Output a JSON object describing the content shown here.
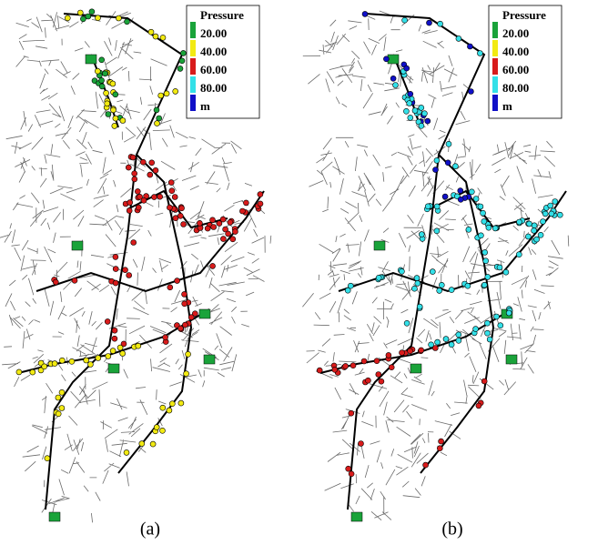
{
  "panels": [
    {
      "legend": {
        "title": "Pressure",
        "labels": [
          "20.00",
          "40.00",
          "60.00",
          "80.00"
        ],
        "unit": "m",
        "colors": [
          "#1aa33a",
          "#f2ea12",
          "#d81b1b",
          "#33e0e8",
          "#1010c8"
        ]
      },
      "caption": "(a)"
    },
    {
      "legend": {
        "title": "Pressure",
        "labels": [
          "20.00",
          "40.00",
          "60.00",
          "80.00"
        ],
        "unit": "m",
        "colors": [
          "#1aa33a",
          "#f2ea12",
          "#d81b1b",
          "#33e0e8",
          "#1010c8"
        ]
      },
      "caption": "(b)"
    }
  ]
}
